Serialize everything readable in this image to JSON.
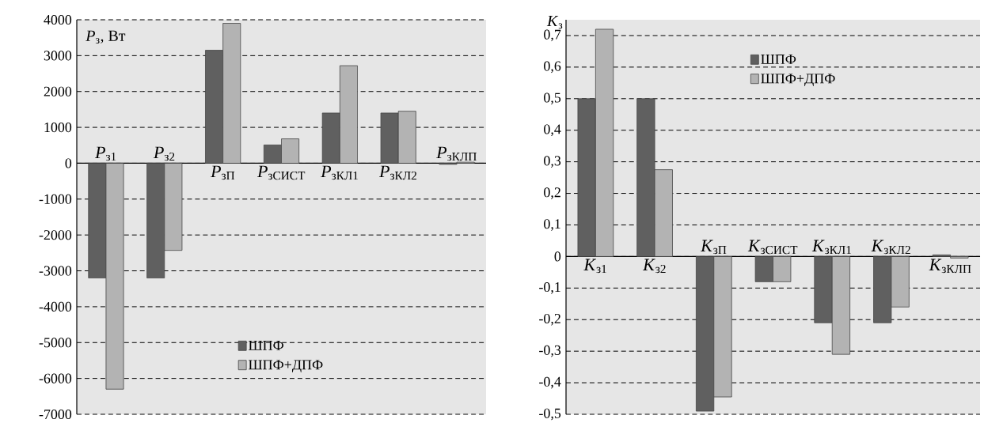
{
  "chart_data": [
    {
      "type": "bar",
      "ylabel": "*P*$_{з}$, Вт",
      "categories": [
        "*P*$_{з1}$",
        "*P*$_{з2}$",
        "*P*$_{зП}$",
        "*P*$_{зСИСТ}$",
        "*P*$_{зКЛ1}$",
        "*P*$_{зКЛ2}$",
        "*P*$_{зКЛП}$"
      ],
      "series": [
        {
          "name": "ШПФ",
          "color": "#606060",
          "values": [
            -3200,
            -3200,
            3150,
            510,
            1400,
            1400,
            -30
          ]
        },
        {
          "name": "ШПФ+ДПФ",
          "color": "#b3b3b3",
          "values": [
            -6300,
            -2430,
            3900,
            680,
            2720,
            1450,
            30
          ]
        }
      ],
      "ylim": [
        -7000,
        4000
      ],
      "yticks": [
        -7000,
        -6000,
        -5000,
        -4000,
        -3000,
        -2000,
        -1000,
        0,
        1000,
        2000,
        3000,
        4000
      ],
      "grid": "y",
      "legend": "bottom"
    },
    {
      "type": "bar",
      "ylabel": "*K*$_{з}$",
      "categories": [
        "*K*$_{з1}$",
        "*K*$_{з2}$",
        "*K*$_{зП}$",
        "*K*$_{зСИСТ}$",
        "*K*$_{зКЛ1}$",
        "*K*$_{зКЛ2}$",
        "*K*$_{зКЛП}$"
      ],
      "series": [
        {
          "name": "ШПФ",
          "color": "#606060",
          "values": [
            0.5,
            0.5,
            -0.49,
            -0.08,
            -0.21,
            -0.21,
            0.005
          ]
        },
        {
          "name": "ШПФ+ДПФ",
          "color": "#b3b3b3",
          "values": [
            0.72,
            0.275,
            -0.445,
            -0.08,
            -0.31,
            -0.16,
            -0.005
          ]
        }
      ],
      "ylim": [
        -0.5,
        0.75
      ],
      "yticks": [
        {
          "value": -0.5,
          "label": "-0,5"
        },
        {
          "value": -0.4,
          "label": "-0,4"
        },
        {
          "value": -0.3,
          "label": "-0,3"
        },
        {
          "value": -0.2,
          "label": "-0,2"
        },
        {
          "value": -0.1,
          "label": "-0,1"
        },
        0,
        {
          "value": 0.1,
          "label": "0,1"
        },
        {
          "value": 0.2,
          "label": "0,2"
        },
        {
          "value": 0.3,
          "label": "0,3"
        },
        {
          "value": 0.4,
          "label": "0,4"
        },
        {
          "value": 0.5,
          "label": "0,5"
        },
        {
          "value": 0.6,
          "label": "0,6"
        },
        {
          "value": 0.7,
          "label": "0,7"
        }
      ],
      "grid": "y",
      "legend": "top"
    }
  ]
}
